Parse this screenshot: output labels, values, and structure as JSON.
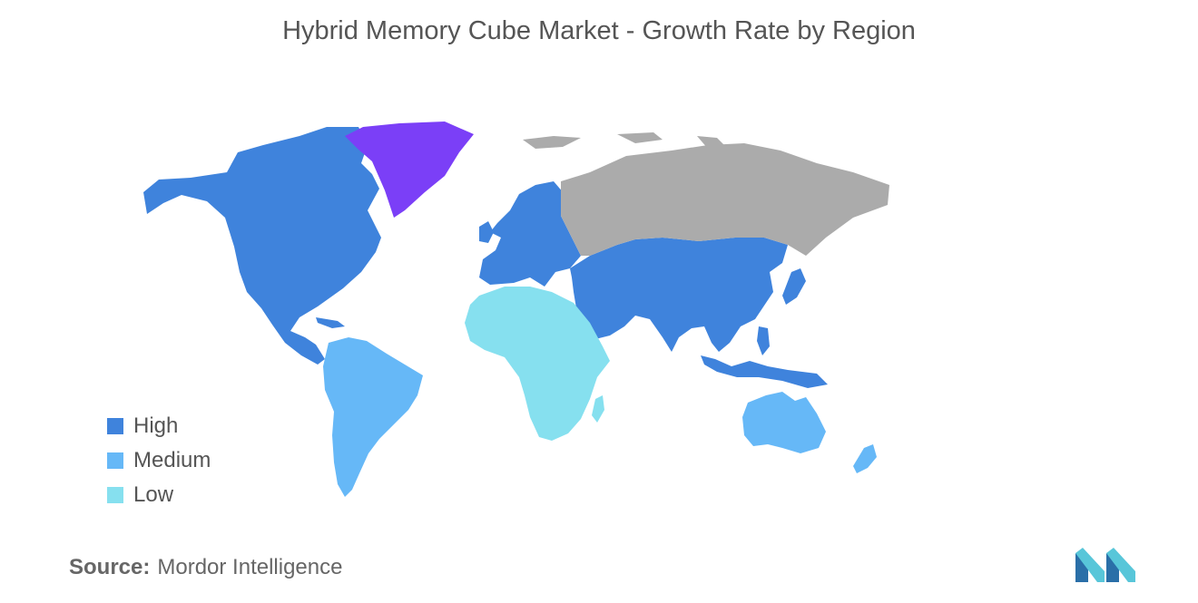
{
  "header": {
    "title": "Hybrid Memory Cube Market - Growth Rate by Region"
  },
  "colors": {
    "high": "#3f83dc",
    "medium": "#66b8f7",
    "low": "#86e0ef",
    "greenland": "#7b3ff7",
    "no_data": "#ababab",
    "logo_dark": "#2a6fa8",
    "logo_light": "#58c6d9"
  },
  "legend": {
    "items": [
      {
        "label": "High",
        "color": "#3f83dc"
      },
      {
        "label": "Medium",
        "color": "#66b8f7"
      },
      {
        "label": "Low",
        "color": "#86e0ef"
      }
    ]
  },
  "regions": [
    {
      "name": "North America",
      "level": "High"
    },
    {
      "name": "Europe",
      "level": "High"
    },
    {
      "name": "Asia-Pacific",
      "level": "High"
    },
    {
      "name": "Middle East",
      "level": "High"
    },
    {
      "name": "South America",
      "level": "Medium"
    },
    {
      "name": "Australia",
      "level": "Medium"
    },
    {
      "name": "Africa",
      "level": "Low"
    }
  ],
  "footer": {
    "source_label": "Source:",
    "source_value": "Mordor Intelligence"
  }
}
